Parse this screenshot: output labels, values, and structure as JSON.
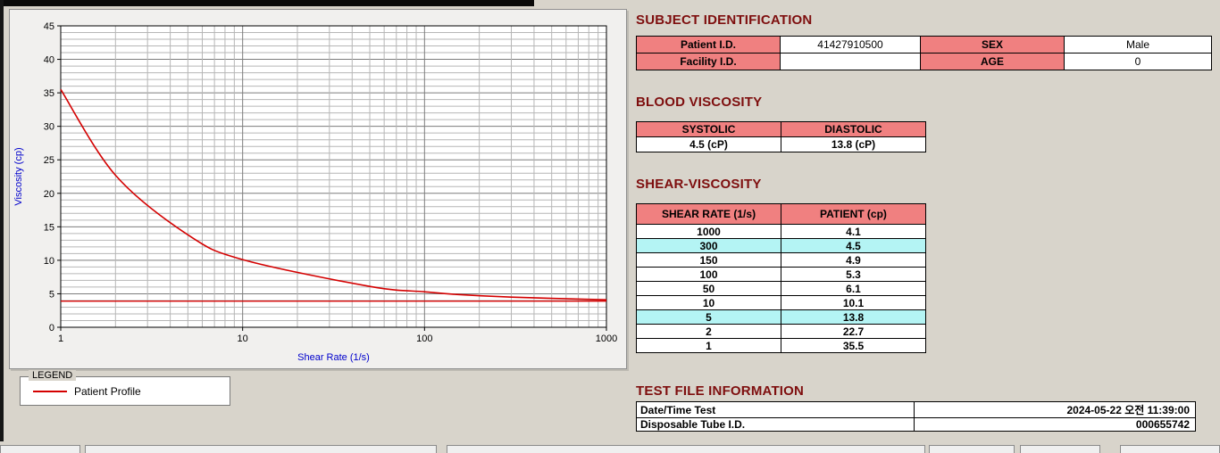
{
  "colors": {
    "heading": "#7e0e0e",
    "table_header_bg": "#f08080",
    "row_highlight_bg": "#b4f4f4",
    "curve": "#d40000",
    "axis_label": "#0000cc"
  },
  "legend": {
    "title": "LEGEND",
    "series_label": "Patient Profile"
  },
  "subject": {
    "title": "SUBJECT IDENTIFICATION",
    "patient_id_label": "Patient I.D.",
    "patient_id": "41427910500",
    "sex_label": "SEX",
    "sex": "Male",
    "facility_id_label": "Facility I.D.",
    "facility_id": "",
    "age_label": "AGE",
    "age": "0"
  },
  "blood_viscosity": {
    "title": "BLOOD VISCOSITY",
    "systolic_label": "SYSTOLIC",
    "diastolic_label": "DIASTOLIC",
    "systolic_value": "4.5 (cP)",
    "diastolic_value": "13.8 (cP)"
  },
  "shear_viscosity": {
    "title": "SHEAR-VISCOSITY",
    "col1": "SHEAR RATE (1/s)",
    "col2": "PATIENT (cp)",
    "rows": [
      {
        "rate": "1000",
        "value": "4.1",
        "highlight": false
      },
      {
        "rate": "300",
        "value": "4.5",
        "highlight": true
      },
      {
        "rate": "150",
        "value": "4.9",
        "highlight": false
      },
      {
        "rate": "100",
        "value": "5.3",
        "highlight": false
      },
      {
        "rate": "50",
        "value": "6.1",
        "highlight": false
      },
      {
        "rate": "10",
        "value": "10.1",
        "highlight": false
      },
      {
        "rate": "5",
        "value": "13.8",
        "highlight": true
      },
      {
        "rate": "2",
        "value": "22.7",
        "highlight": false
      },
      {
        "rate": "1",
        "value": "35.5",
        "highlight": false
      }
    ]
  },
  "test_file": {
    "title": "TEST FILE INFORMATION",
    "date_label": "Date/Time Test",
    "date_value": "2024-05-22  오전 11:39:00",
    "tube_label": "Disposable Tube I.D.",
    "tube_value": "000655742"
  },
  "chart_data": {
    "type": "line",
    "xscale": "log",
    "x": [
      1,
      2,
      5,
      10,
      50,
      100,
      150,
      300,
      1000
    ],
    "series": [
      {
        "name": "Patient Profile",
        "values": [
          35.5,
          22.7,
          13.8,
          10.1,
          6.1,
          5.3,
          4.9,
          4.5,
          4.1
        ]
      }
    ],
    "baseline": 3.9,
    "xlabel": "Shear Rate (1/s)",
    "ylabel": "Viscosity (cp)",
    "xlim": [
      1,
      1000
    ],
    "ylim": [
      0,
      45
    ],
    "ytick_step": 5,
    "xticks": [
      1,
      10,
      100,
      1000
    ],
    "grid": "on",
    "legend_position": "below-left"
  }
}
